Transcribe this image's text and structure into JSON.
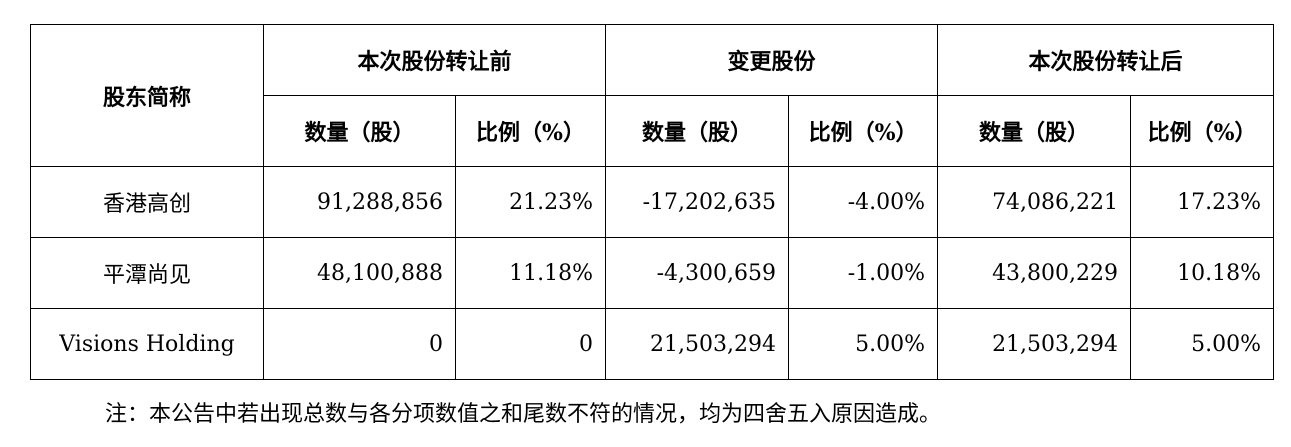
{
  "table": {
    "corner": "股东简称",
    "groups": [
      "本次股份转让前",
      "变更股份",
      "本次股份转让后"
    ],
    "subheaders": [
      "数量（股）",
      "比例（%）",
      "数量（股）",
      "比例（%）",
      "数量（股）",
      "比例（%）"
    ],
    "rows": [
      [
        "香港高创",
        "91,288,856",
        "21.23%",
        "-17,202,635",
        "-4.00%",
        "74,086,221",
        "17.23%"
      ],
      [
        "平潭尚见",
        "48,100,888",
        "11.18%",
        "-4,300,659",
        "-1.00%",
        "43,800,229",
        "10.18%"
      ],
      [
        "Visions Holding",
        "0",
        "0",
        "21,503,294",
        "5.00%",
        "21,503,294",
        "5.00%"
      ]
    ]
  },
  "note": "注：本公告中若出现总数与各分项数值之和尾数不符的情况，均为四舍五入原因造成。"
}
